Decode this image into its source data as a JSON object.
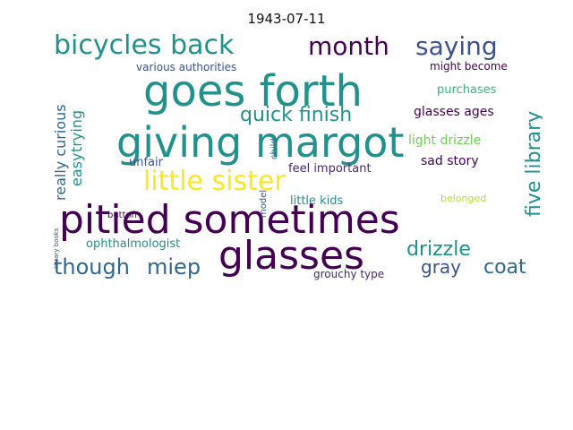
{
  "title": "1943-07-11",
  "palette": {
    "dark_purple": "#440154",
    "purple": "#482878",
    "indigo": "#3b528b",
    "blue": "#31688e",
    "teal": "#21918c",
    "sea_green": "#35b779",
    "green": "#6ece58",
    "lime": "#b5de2b",
    "yellow": "#fde725"
  },
  "words": [
    {
      "text": "pitied sometimes"
    },
    {
      "text": "giving margot"
    },
    {
      "text": "goes forth"
    },
    {
      "text": "glasses"
    },
    {
      "text": "bicycles back"
    },
    {
      "text": "little sister"
    },
    {
      "text": "saying"
    },
    {
      "text": "month"
    },
    {
      "text": "though"
    },
    {
      "text": "miep"
    },
    {
      "text": "quick finish"
    },
    {
      "text": "five library"
    },
    {
      "text": "drizzle"
    },
    {
      "text": "coat"
    },
    {
      "text": "gray"
    },
    {
      "text": "really curious"
    },
    {
      "text": "trying"
    },
    {
      "text": "easy"
    },
    {
      "text": "ophthalmologist"
    },
    {
      "text": "glasses ages"
    },
    {
      "text": "various authorities"
    },
    {
      "text": "light drizzle"
    },
    {
      "text": "sad story"
    },
    {
      "text": "unfair"
    },
    {
      "text": "feel important"
    },
    {
      "text": "little kids"
    },
    {
      "text": "purchases"
    },
    {
      "text": "might become"
    },
    {
      "text": "grouchy type"
    },
    {
      "text": "button"
    },
    {
      "text": "belonged"
    },
    {
      "text": "model"
    },
    {
      "text": "child"
    },
    {
      "text": "library books"
    }
  ]
}
